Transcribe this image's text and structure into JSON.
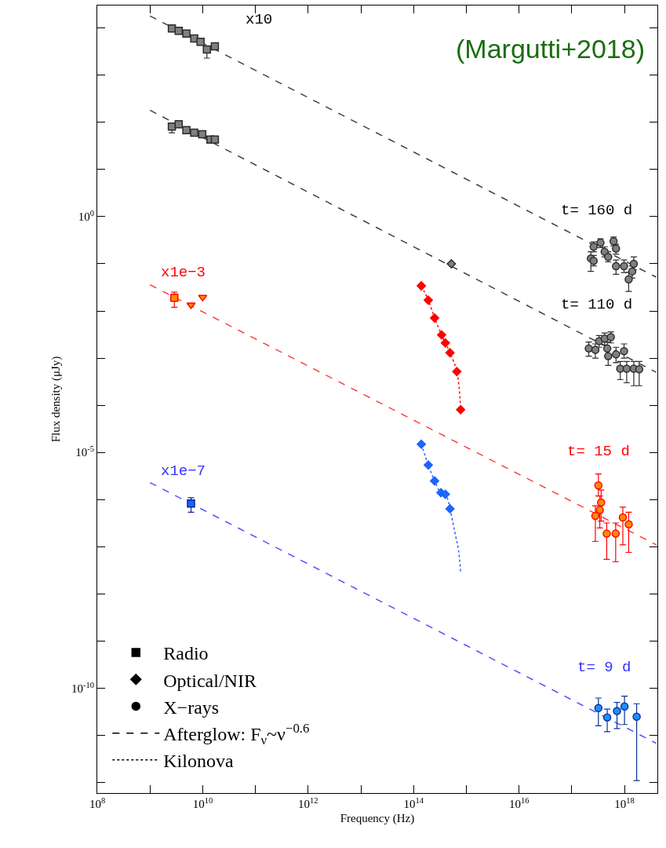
{
  "chart_data": {
    "type": "scatter",
    "xlabel": "Frequency (Hz)",
    "ylabel": "Flux density (μJy)",
    "log": "xy",
    "legend": "bottom left",
    "xlim": [
      100000000.0,
      4.2e+18
    ],
    "ylim": [
      6e-13,
      30000.0
    ],
    "xticks": [
      {
        "value": 100000000.0,
        "label": "10$^{8}$"
      },
      {
        "value": 1000000000.0,
        "label": null
      },
      {
        "value": 10000000000.0,
        "label": "10$^{10}$"
      },
      {
        "value": 100000000000.0,
        "label": null
      },
      {
        "value": 1000000000000.0,
        "label": "10$^{12}$"
      },
      {
        "value": 10000000000000.0,
        "label": null
      },
      {
        "value": 100000000000000.0,
        "label": "10$^{14}$"
      },
      {
        "value": 1000000000000000.0,
        "label": null
      },
      {
        "value": 1e+16,
        "label": "10$^{16}$"
      },
      {
        "value": 1e+17,
        "label": null
      },
      {
        "value": 1e+18,
        "label": "10$^{18}$"
      }
    ],
    "yticks": [
      {
        "value": 10000.0,
        "label": null
      },
      {
        "value": 1000.0,
        "label": null
      },
      {
        "value": 100.0,
        "label": null
      },
      {
        "value": 10.0,
        "label": null
      },
      {
        "value": 1,
        "label": "10$^{0}$"
      },
      {
        "value": 0.1,
        "label": null
      },
      {
        "value": 0.01,
        "label": null
      },
      {
        "value": 0.001,
        "label": null
      },
      {
        "value": 0.0001,
        "label": null
      },
      {
        "value": 1e-05,
        "label": "10$^{-5}$"
      },
      {
        "value": 1e-06,
        "label": null
      },
      {
        "value": 1e-07,
        "label": null
      },
      {
        "value": 1e-08,
        "label": null
      },
      {
        "value": 1e-09,
        "label": null
      },
      {
        "value": 1e-10,
        "label": "10$^{-10}$"
      },
      {
        "value": 1e-11,
        "label": null
      },
      {
        "value": 1e-12,
        "label": null
      }
    ],
    "series": [
      {
        "type": "line",
        "line_style": "dashed",
        "marker": "none",
        "color": "#404040",
        "x": [
          1000000000.0,
          4e+18
        ],
        "values": [
          18000,
          0.052
        ]
      },
      {
        "type": "line",
        "line_style": "dashed",
        "marker": "none",
        "color": "#404040",
        "x": [
          1000000000.0,
          4e+18
        ],
        "values": [
          180,
          0.0005
        ]
      },
      {
        "type": "line",
        "line_style": "dashed",
        "marker": "none",
        "color": "#ff4040",
        "x": [
          1000000000.0,
          4e+18
        ],
        "values": [
          0.036,
          1.1e-07
        ]
      },
      {
        "type": "line",
        "line_style": "dashed",
        "marker": "none",
        "color": "#5050ff",
        "x": [
          1000000000.0,
          4e+18
        ],
        "values": [
          2.3e-06,
          6.8e-12
        ]
      },
      {
        "marker": "square",
        "color": "#808080",
        "x": [
          2600000000.0,
          3500000000.0,
          4900000000.0,
          6900000000.0,
          9100000000.0,
          12000000000.0,
          17000000000.0
        ],
        "values": [
          9800,
          8700,
          7600,
          6000,
          5100,
          3500,
          4100
        ],
        "errors": [
          null,
          null,
          null,
          null,
          null,
          [
            2300,
            4000
          ],
          null
        ]
      },
      {
        "marker": "square",
        "color": "#808080",
        "x": [
          2600000000.0,
          3500000000.0,
          4900000000.0,
          6900000000.0,
          9800000000.0,
          14000000000.0,
          17000000000.0
        ],
        "values": [
          81,
          91,
          68,
          60,
          56,
          43,
          43
        ],
        "errors": [
          [
            60,
            95
          ],
          null,
          null,
          null,
          null,
          null,
          null
        ]
      },
      {
        "marker": "diamond",
        "color": "#808080",
        "x": [
          520000000000000.0
        ],
        "values": [
          0.1
        ]
      },
      {
        "marker": "circle",
        "color": "#808080",
        "x": [
          2.6e+17,
          3.5e+17,
          6.2e+17,
          4.2e+17,
          6.9e+17,
          4.9e+17,
          2.3e+17,
          2.6e+17,
          6.9e+17,
          9.8e+17,
          1.5e+18,
          1.4e+18,
          1.2e+18
        ],
        "values": [
          0.23,
          0.28,
          0.3,
          0.18,
          0.21,
          0.14,
          0.13,
          0.115,
          0.089,
          0.089,
          0.1,
          0.069,
          0.047
        ],
        "errors": [
          [
            0.18,
            0.29
          ],
          [
            0.22,
            0.34
          ],
          [
            0.24,
            0.37
          ],
          [
            0.14,
            0.23
          ],
          [
            0.16,
            0.26
          ],
          [
            0.11,
            0.18
          ],
          [
            0.069,
            0.18
          ],
          [
            0.09,
            0.15
          ],
          [
            0.06,
            0.12
          ],
          [
            0.065,
            0.12
          ],
          [
            0.075,
            0.14
          ],
          [
            0.05,
            0.09
          ],
          [
            0.026,
            0.066
          ]
        ]
      },
      {
        "marker": "circle",
        "color": "#808080",
        "x": [
          2.1e+17,
          2.8e+17,
          3.3e+17,
          4.2e+17,
          5.5e+17,
          4.7e+17,
          4.9e+17,
          6.9e+17,
          9.8e+17,
          8.3e+17,
          1.1e+18,
          1.5e+18,
          1.9e+18
        ],
        "values": [
          0.0016,
          0.0015,
          0.0023,
          0.0026,
          0.0028,
          0.0016,
          0.0011,
          0.0012,
          0.0014,
          0.0006,
          0.0006,
          0.0006,
          0.00058
        ],
        "errors": [
          [
            0.0011,
            0.0022
          ],
          [
            0.001,
            0.002
          ],
          [
            0.0017,
            0.003
          ],
          [
            0.0019,
            0.0034
          ],
          [
            0.0021,
            0.0036
          ],
          [
            0.0011,
            0.0022
          ],
          [
            0.0007,
            0.0016
          ],
          [
            0.0008,
            0.0017
          ],
          [
            0.001,
            0.002
          ],
          [
            0.00035,
            0.00085
          ],
          [
            0.0003,
            0.00085
          ],
          [
            0.00026,
            0.00085
          ],
          [
            0.00026,
            0.00085
          ]
        ]
      },
      {
        "type": "line",
        "line_style": "dotted",
        "marker": "diamond",
        "color": "#ff0000",
        "x": [
          140000000000000.0,
          190000000000000.0,
          250000000000000.0,
          340000000000000.0,
          400000000000000.0,
          490000000000000.0,
          660000000000000.0,
          780000000000000.0
        ],
        "values": [
          0.034,
          0.017,
          0.0071,
          0.0031,
          0.0021,
          0.0013,
          0.00052,
          8.1e-05
        ]
      },
      {
        "marker": "square",
        "color": "#ff8c00",
        "x": [
          2900000000.0
        ],
        "values": [
          0.019
        ],
        "errors": [
          [
            0.012,
            0.025
          ]
        ]
      },
      {
        "marker": "triangle",
        "color": "#ff8c00",
        "x": [
          6000000000.0,
          10000000000.0
        ],
        "values": [
          0.0135,
          0.0195
        ]
      },
      {
        "marker": "circle",
        "color": "#ff8c00",
        "x": [
          3.2e+17,
          3.6e+17,
          3.4e+17,
          2.8e+17,
          4.6e+17,
          6.8e+17,
          9.3e+17,
          1.2e+18
        ],
        "values": [
          2e-06,
          8.7e-07,
          6e-07,
          4.5e-07,
          1.9e-07,
          1.9e-07,
          4.2e-07,
          3e-07
        ],
        "errors": [
          [
            1.2e-06,
            3.5e-06
          ],
          [
            3.5e-07,
            1.6e-06
          ],
          [
            2.5e-07,
            1.2e-06
          ],
          [
            1.3e-07,
            7.4e-07
          ],
          [
            5.4e-08,
            3.2e-07
          ],
          [
            4.8e-08,
            3.2e-07
          ],
          [
            1.1e-07,
            6.9e-07
          ],
          [
            7.6e-08,
            5.4e-07
          ]
        ]
      },
      {
        "type": "line",
        "line_style": "dotted",
        "marker": "diamond",
        "color": "#1e64ff",
        "x": [
          140000000000000.0,
          190000000000000.0,
          250000000000000.0,
          330000000000000.0,
          400000000000000.0,
          490000000000000.0
        ],
        "values": [
          1.5e-05,
          5.4e-06,
          2.5e-06,
          1.4e-06,
          1.3e-06,
          6.4e-07
        ]
      },
      {
        "type": "line",
        "line_style": "dotted",
        "marker": "none",
        "color": "#1e64ff",
        "x": [
          490000000000000.0,
          620000000000000.0,
          710000000000000.0,
          780000000000000.0
        ],
        "values": [
          6.4e-07,
          1.8e-07,
          8.5e-08,
          2.9e-08
        ]
      },
      {
        "marker": "square",
        "color": "#1e64ff",
        "x": [
          6000000000.0
        ],
        "values": [
          8.3e-07
        ],
        "errors": [
          [
            5.4e-07,
            1.1e-06
          ]
        ]
      },
      {
        "marker": "circle",
        "color": "#1e90ff",
        "x": [
          3.2e+17,
          4.7e+17,
          7.2e+17,
          1e+18,
          1.7e+18
        ],
        "values": [
          3.8e-11,
          2.4e-11,
          3.3e-11,
          4.1e-11,
          2.5e-11
        ],
        "errors": [
          [
            1.6e-11,
            6.2e-11
          ],
          [
            1.2e-11,
            3.6e-11
          ],
          [
            1.4e-11,
            5e-11
          ],
          [
            1.7e-11,
            6.8e-11
          ],
          [
            1.1e-12,
            4.7e-11
          ]
        ]
      },
      {
        "name": "Radio",
        "marker": "square",
        "color": "#000000",
        "x": [
          null
        ],
        "values": [
          null
        ]
      },
      {
        "name": "Optical/NIR",
        "marker": "diamond",
        "color": "#000000",
        "x": [
          null
        ],
        "values": [
          null
        ]
      },
      {
        "name": "X−rays",
        "marker": "circle",
        "color": "#000000",
        "x": [
          null
        ],
        "values": [
          null
        ]
      },
      {
        "name": "Afterglow: F$_{ν}$~ν$^{−0.6}$",
        "type": "line",
        "line_style": "dashed",
        "marker": "none",
        "color": "#000000",
        "x": [
          null
        ],
        "values": [
          null
        ]
      },
      {
        "name": "Kilonova",
        "type": "line",
        "line_style": "dotted",
        "marker": "none",
        "color": "#000000",
        "x": [
          null
        ],
        "values": [
          null
        ]
      }
    ],
    "annotations": [
      "(Margutti+2018)",
      "x10",
      "t= 160 d",
      "t= 110 d",
      "x1e−3",
      "t= 15 d",
      "x1e−7",
      "t= 9 d"
    ]
  }
}
